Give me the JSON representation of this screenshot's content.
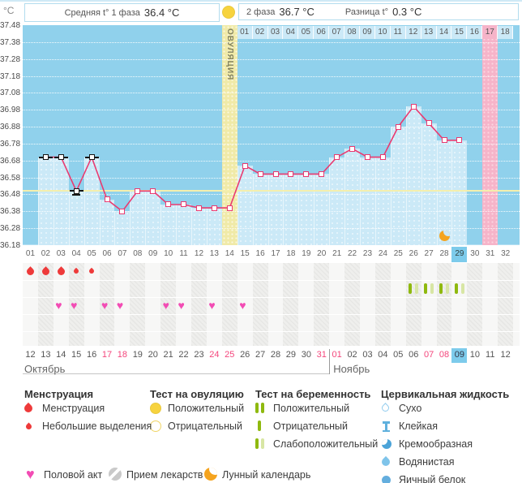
{
  "colors": {
    "plot_bg": "#90d1ec",
    "plot_fill": "#cbe9f7",
    "ovulation_band": "#f0eaa8",
    "ovulation_yellow": "#f7d33e",
    "highlight_pink": "#f6b4c9",
    "highlight_blue": "#7dcbeb",
    "coverline": "#f4efad",
    "line_pink": "#ea3a70",
    "menstruation": "#ee3a3a",
    "heart": "#f24cb4",
    "test_green": "#8fb90f",
    "test_faint": "#d8e6a4",
    "moon_orange": "#f5a41f",
    "weekend_red": "#f4467c"
  },
  "header": {
    "unit": "°C",
    "avg_phase1_label": "Средняя t° 1 фаза",
    "avg_phase1_value": "36.4 °C",
    "phase2_label": "2 фаза",
    "phase2_value": "36.7 °C",
    "diff_label": "Разница t°",
    "diff_value": "0.3 °C"
  },
  "chart_data": {
    "type": "line",
    "title": "Basal body temperature cycle chart",
    "ylabel": "°C",
    "y_ticks": [
      "37.48",
      "37.38",
      "37.28",
      "37.18",
      "37.08",
      "36.98",
      "36.88",
      "36.78",
      "36.68",
      "36.58",
      "36.48",
      "36.38",
      "36.28",
      "36.18"
    ],
    "ylim": [
      36.18,
      37.48
    ],
    "coverline": 36.5,
    "cycle_day_labels": [
      "01",
      "02",
      "03",
      "04",
      "05",
      "06",
      "07",
      "08",
      "09",
      "10",
      "11",
      "12",
      "13",
      "14",
      "15",
      "16",
      "17",
      "18",
      "19",
      "20",
      "21",
      "22",
      "23",
      "24",
      "25",
      "26",
      "27",
      "28",
      "29",
      "30",
      "31",
      "32"
    ],
    "dpo_labels": [
      "01",
      "02",
      "03",
      "04",
      "05",
      "06",
      "07",
      "08",
      "09",
      "10",
      "11",
      "12",
      "13",
      "14",
      "15",
      "16",
      "17",
      "18"
    ],
    "dpo_start_cycle_day": 15,
    "ovulation_day": 14,
    "ovulation_label": "ОВУЛЯЦИЯ",
    "today_cycle_day": 29,
    "pink_highlight_cycle_day": 31,
    "pink_highlight_dpo": "17",
    "moon_cycle_day": 28,
    "points": [
      {
        "day": 2,
        "temp": 36.7,
        "excluded": true
      },
      {
        "day": 3,
        "temp": 36.7,
        "excluded": true
      },
      {
        "day": 4,
        "temp": 36.5,
        "excluded": true,
        "underline": true
      },
      {
        "day": 5,
        "temp": 36.7,
        "excluded": true
      },
      {
        "day": 6,
        "temp": 36.45
      },
      {
        "day": 7,
        "temp": 36.38
      },
      {
        "day": 8,
        "temp": 36.5
      },
      {
        "day": 9,
        "temp": 36.5
      },
      {
        "day": 10,
        "temp": 36.42
      },
      {
        "day": 11,
        "temp": 36.42
      },
      {
        "day": 12,
        "temp": 36.4
      },
      {
        "day": 13,
        "temp": 36.4
      },
      {
        "day": 14,
        "temp": 36.4
      },
      {
        "day": 15,
        "temp": 36.65
      },
      {
        "day": 16,
        "temp": 36.6
      },
      {
        "day": 17,
        "temp": 36.6
      },
      {
        "day": 18,
        "temp": 36.6
      },
      {
        "day": 19,
        "temp": 36.6
      },
      {
        "day": 20,
        "temp": 36.6
      },
      {
        "day": 21,
        "temp": 36.7
      },
      {
        "day": 22,
        "temp": 36.75
      },
      {
        "day": 23,
        "temp": 36.7
      },
      {
        "day": 24,
        "temp": 36.7
      },
      {
        "day": 25,
        "temp": 36.88
      },
      {
        "day": 26,
        "temp": 37.0
      },
      {
        "day": 27,
        "temp": 36.9
      },
      {
        "day": 28,
        "temp": 36.8
      },
      {
        "day": 29,
        "temp": 36.8
      }
    ]
  },
  "events": {
    "menstruation": [
      {
        "day": 1,
        "size": "large"
      },
      {
        "day": 2,
        "size": "large"
      },
      {
        "day": 3,
        "size": "large"
      },
      {
        "day": 4,
        "size": "small"
      },
      {
        "day": 5,
        "size": "small"
      }
    ],
    "pregnancy_tests_weak_positive_days": [
      26,
      27,
      28,
      29
    ],
    "intercourse_days": [
      3,
      4,
      6,
      7,
      10,
      11,
      13,
      15
    ]
  },
  "calendar": {
    "dates": [
      "12",
      "13",
      "14",
      "15",
      "16",
      "17",
      "18",
      "19",
      "20",
      "21",
      "22",
      "23",
      "24",
      "25",
      "26",
      "27",
      "28",
      "29",
      "30",
      "31",
      "01",
      "02",
      "03",
      "04",
      "05",
      "06",
      "07",
      "08",
      "09",
      "10",
      "11",
      "12"
    ],
    "red_indices": [
      5,
      6,
      12,
      13,
      19,
      20,
      26,
      27
    ],
    "today_index": 28,
    "month_split_index": 20,
    "month1": "Октябрь",
    "month2": "Ноябрь"
  },
  "legend": {
    "columns": [
      {
        "title": "Менструация",
        "items": [
          {
            "icon": "drop-large",
            "label": "Менструация"
          },
          {
            "icon": "drop-small",
            "label": "Небольшие выделения"
          }
        ]
      },
      {
        "title": "Тест на овуляцию",
        "items": [
          {
            "icon": "circle-yellow-filled",
            "label": "Положительный"
          },
          {
            "icon": "circle-yellow-outline",
            "label": "Отрицательный"
          }
        ]
      },
      {
        "title": "Тест на беременность",
        "items": [
          {
            "icon": "bars-two-solid",
            "label": "Положительный"
          },
          {
            "icon": "bar-one-solid",
            "label": "Отрицательный"
          },
          {
            "icon": "bars-solid-faint",
            "label": "Слабоположительный"
          }
        ]
      },
      {
        "title": "Цервикальная жидкость",
        "items": [
          {
            "icon": "drop-outline",
            "label": "Сухо"
          },
          {
            "icon": "ibeam",
            "label": "Клейкая"
          },
          {
            "icon": "halfmoon",
            "label": "Кремообразная"
          },
          {
            "icon": "drop-solid",
            "label": "Водянистая"
          },
          {
            "icon": "circle-blue-solid",
            "label": "Яичный белок"
          }
        ]
      }
    ],
    "footer_items": [
      {
        "icon": "heart",
        "label": "Половой акт"
      },
      {
        "icon": "pill",
        "label": "Прием лекарств"
      },
      {
        "icon": "moon",
        "label": "Лунный календарь"
      }
    ]
  }
}
